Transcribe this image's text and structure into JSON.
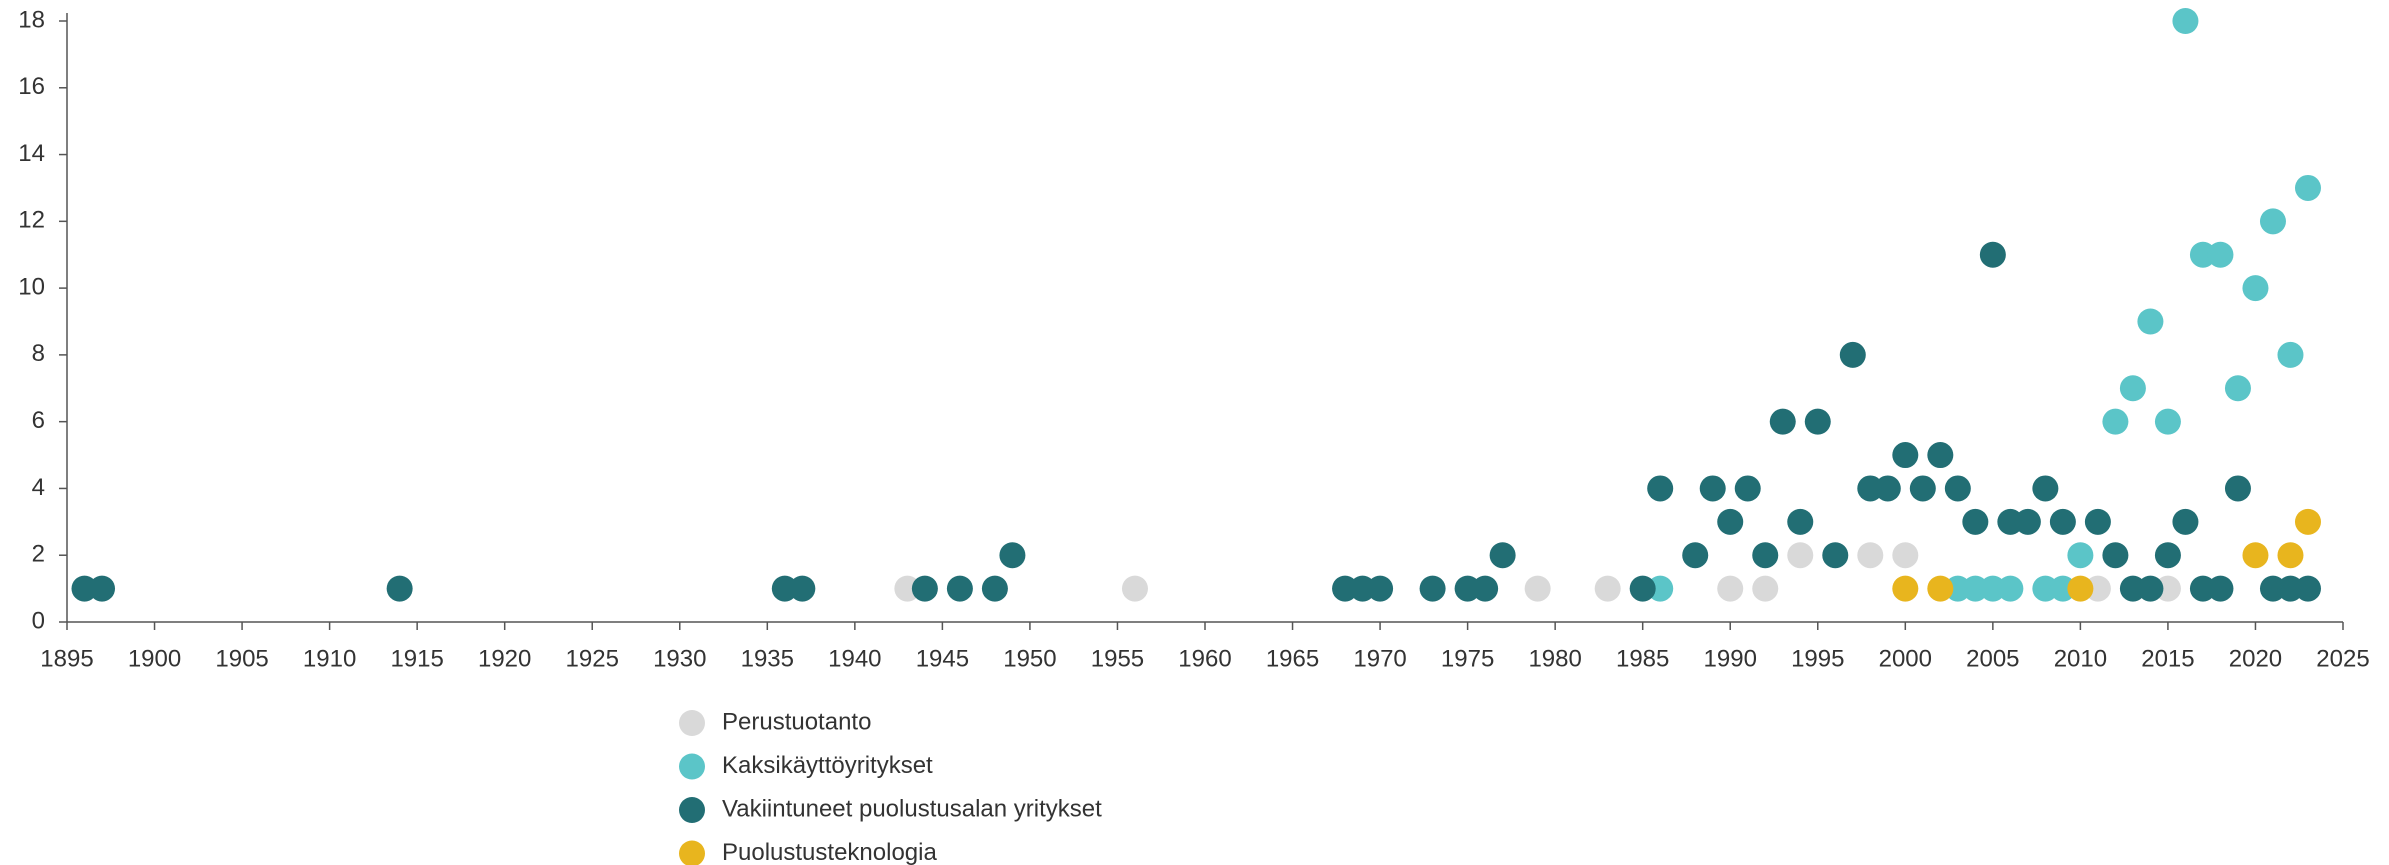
{
  "chart_data": {
    "type": "scatter",
    "xlim": [
      1895,
      2025
    ],
    "xticks": [
      1895,
      1900,
      1905,
      1910,
      1915,
      1920,
      1925,
      1930,
      1935,
      1940,
      1945,
      1950,
      1955,
      1960,
      1965,
      1970,
      1975,
      1980,
      1985,
      1990,
      1995,
      2000,
      2005,
      2010,
      2015,
      2020,
      2025
    ],
    "ylim": [
      0,
      18
    ],
    "yticks": [
      0,
      2,
      4,
      6,
      8,
      10,
      12,
      14,
      16,
      18
    ],
    "grid": false,
    "legend": "bottom",
    "series": [
      {
        "name": "Perustuotanto",
        "color": "#d9d9d9",
        "x": [
          1943,
          1956,
          1979,
          1983,
          1990,
          1992,
          1994,
          1998,
          2000,
          2011,
          2015
        ],
        "values": [
          1,
          1,
          1,
          1,
          1,
          1,
          2,
          2,
          2,
          1,
          1
        ]
      },
      {
        "name": "Kaksikäyttöyritykset",
        "color": "#5bc5c8",
        "x": [
          1986,
          2003,
          2004,
          2005,
          2006,
          2008,
          2009,
          2010,
          2012,
          2013,
          2014,
          2015,
          2016,
          2017,
          2018,
          2019,
          2020,
          2021,
          2022,
          2023
        ],
        "values": [
          1,
          1,
          1,
          1,
          1,
          1,
          1,
          2,
          6,
          7,
          9,
          6,
          18,
          11,
          11,
          7,
          10,
          12,
          8,
          13
        ]
      },
      {
        "name": "Vakiintuneet puolustusalan yritykset",
        "color": "#226e74",
        "x": [
          1896,
          1897,
          1914,
          1936,
          1937,
          1944,
          1946,
          1948,
          1949,
          1968,
          1969,
          1970,
          1973,
          1975,
          1976,
          1977,
          1985,
          1986,
          1988,
          1989,
          1990,
          1991,
          1992,
          1993,
          1994,
          1995,
          1996,
          1997,
          1998,
          1999,
          2000,
          2001,
          2002,
          2003,
          2004,
          2005,
          2006,
          2007,
          2008,
          2009,
          2011,
          2012,
          2013,
          2014,
          2015,
          2016,
          2017,
          2018,
          2019,
          2021,
          2022,
          2023
        ],
        "values": [
          1,
          1,
          1,
          1,
          1,
          1,
          1,
          1,
          2,
          1,
          1,
          1,
          1,
          1,
          1,
          2,
          1,
          4,
          2,
          4,
          3,
          4,
          2,
          6,
          3,
          6,
          2,
          8,
          4,
          4,
          5,
          4,
          5,
          4,
          3,
          11,
          3,
          3,
          4,
          3,
          3,
          2,
          1,
          1,
          2,
          3,
          1,
          1,
          4,
          1,
          1,
          1
        ]
      },
      {
        "name": "Puolustusteknologia",
        "color": "#e8b51e",
        "x": [
          2000,
          2002,
          2010,
          2020,
          2022,
          2023
        ],
        "values": [
          1,
          1,
          1,
          2,
          2,
          3
        ]
      }
    ]
  }
}
